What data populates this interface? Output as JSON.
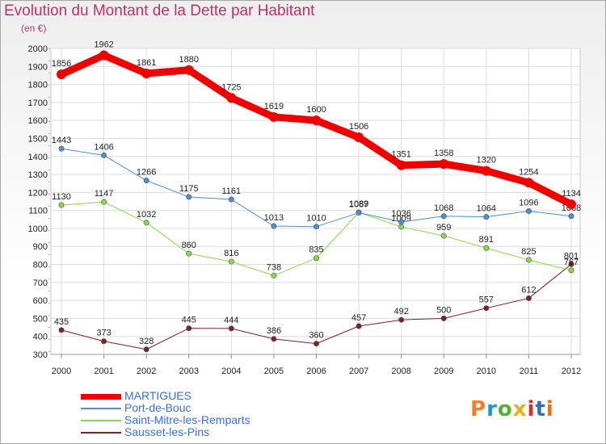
{
  "chart_data": {
    "type": "line",
    "title": "Evolution du Montant de la Dette par Habitant",
    "subtitle": "(en €)",
    "xlabel": "",
    "ylabel": "",
    "ylim": [
      300,
      2000
    ],
    "yticks": [
      300,
      400,
      500,
      600,
      700,
      800,
      900,
      1000,
      1100,
      1200,
      1300,
      1400,
      1500,
      1600,
      1700,
      1800,
      1900,
      2000
    ],
    "categories": [
      "2000",
      "2001",
      "2002",
      "2003",
      "2004",
      "2005",
      "2006",
      "2007",
      "2008",
      "2009",
      "2010",
      "2011",
      "2012"
    ],
    "grid": true,
    "series": [
      {
        "name": "MARTIGUES",
        "color": "#ee0000",
        "values": [
          1856,
          1962,
          1861,
          1880,
          1725,
          1619,
          1600,
          1506,
          1351,
          1358,
          1320,
          1254,
          1134
        ]
      },
      {
        "name": "Port-de-Bouc",
        "color": "#4f8ed0",
        "values": [
          1443,
          1406,
          1266,
          1175,
          1161,
          1013,
          1010,
          1087,
          1036,
          1068,
          1064,
          1096,
          1068
        ]
      },
      {
        "name": "Saint-Mitre-les-Remparts",
        "color": "#88d84f",
        "values": [
          1130,
          1147,
          1032,
          860,
          816,
          738,
          835,
          1089,
          1009,
          959,
          891,
          825,
          767
        ]
      },
      {
        "name": "Sausset-les-Pins",
        "color": "#7a2424",
        "values": [
          435,
          373,
          328,
          445,
          444,
          386,
          360,
          457,
          492,
          500,
          557,
          612,
          801
        ]
      }
    ]
  },
  "logo": {
    "text": "Proxiti",
    "colors": [
      "#f08030",
      "#2090d8",
      "#50b030",
      "#e8b020",
      "#d03030",
      "#3070c0",
      "#e07020"
    ]
  }
}
